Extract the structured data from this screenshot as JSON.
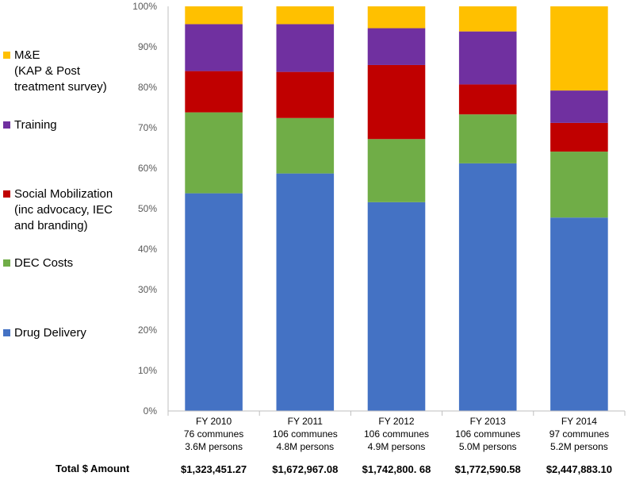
{
  "chart_data": {
    "type": "bar",
    "stacked": "percent",
    "ylim": [
      0,
      100
    ],
    "yticks": [
      "0%",
      "10%",
      "20%",
      "30%",
      "40%",
      "50%",
      "60%",
      "70%",
      "80%",
      "90%",
      "100%"
    ],
    "categories": [
      {
        "lines": [
          "FY 2010",
          "76 communes",
          "3.6M persons"
        ],
        "total": "$1,323,451.27"
      },
      {
        "lines": [
          "FY 2011",
          "106 communes",
          "4.8M persons"
        ],
        "total": "$1,672,967.08"
      },
      {
        "lines": [
          "FY 2012",
          "106 communes",
          "4.9M persons"
        ],
        "total": "$1,742,800. 68"
      },
      {
        "lines": [
          "FY 2013",
          "106 communes",
          "5.0M persons"
        ],
        "total": "$1,772,590.58"
      },
      {
        "lines": [
          "FY 2014",
          "97 communes",
          "5.2M persons"
        ],
        "total": "$2,447,883.10"
      }
    ],
    "series": [
      {
        "name": "Drug Delivery",
        "color": "#4472c4",
        "values": [
          53.8,
          58.7,
          51.6,
          61.2,
          47.8
        ]
      },
      {
        "name": "DEC Costs",
        "color": "#70ad47",
        "values": [
          20.0,
          13.7,
          15.6,
          12.1,
          16.3
        ]
      },
      {
        "name": "Social Mobilization (inc advocacy, IEC and branding)",
        "color": "#c00000",
        "values": [
          10.2,
          11.4,
          18.3,
          7.4,
          7.1
        ]
      },
      {
        "name": "Training",
        "color": "#7030a0",
        "values": [
          11.6,
          11.8,
          9.1,
          13.1,
          8.0
        ]
      },
      {
        "name": "M&E (KAP & Post treatment survey)",
        "color": "#ffc000",
        "values": [
          4.4,
          4.4,
          5.4,
          6.2,
          20.8
        ]
      }
    ],
    "total_label": "Total $ Amount"
  },
  "legend": [
    {
      "key": "me",
      "lines": [
        "M&E",
        "(KAP & Post",
        "treatment survey)"
      ],
      "color": "#ffc000"
    },
    {
      "key": "training",
      "lines": [
        "Training"
      ],
      "color": "#7030a0"
    },
    {
      "key": "social",
      "lines": [
        "Social Mobilization",
        "(inc advocacy, IEC",
        "and branding)"
      ],
      "color": "#c00000"
    },
    {
      "key": "dec",
      "lines": [
        "DEC Costs"
      ],
      "color": "#70ad47"
    },
    {
      "key": "drug",
      "lines": [
        "Drug Delivery"
      ],
      "color": "#4472c4"
    }
  ]
}
